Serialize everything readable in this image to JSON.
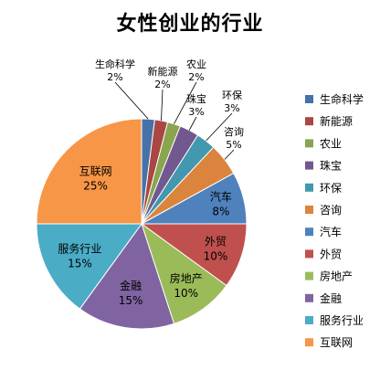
{
  "chart_data": {
    "type": "pie",
    "title": "女性创业的行业",
    "categories": [
      "生命科学",
      "新能源",
      "农业",
      "珠宝",
      "环保",
      "咨询",
      "汽车",
      "外贸",
      "房地产",
      "金融",
      "服务行业",
      "互联网"
    ],
    "values": [
      2,
      2,
      2,
      3,
      3,
      5,
      8,
      10,
      10,
      15,
      15,
      25
    ],
    "value_labels": [
      "2%",
      "2%",
      "2%",
      "3%",
      "3%",
      "5%",
      "8%",
      "10%",
      "10%",
      "15%",
      "15%",
      "25%"
    ],
    "colors": [
      "#4572A7",
      "#AA4643",
      "#89A54E",
      "#71588F",
      "#4198AF",
      "#DB843D",
      "#4F81BD",
      "#C0504D",
      "#9BBB59",
      "#8064A2",
      "#4BACC6",
      "#F79646"
    ],
    "legend_position": "right",
    "grid": false
  }
}
